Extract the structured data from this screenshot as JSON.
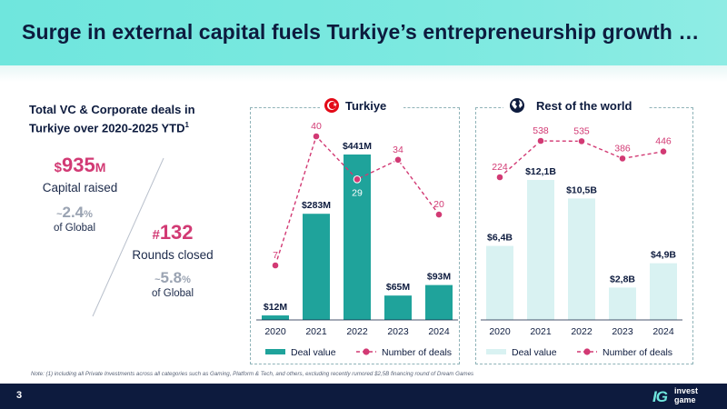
{
  "header": {
    "title": "Surge in external capital fuels Turkiye’s entrepreneurship growth …"
  },
  "summary": {
    "title": "Total VC & Corporate deals in Turkiye over 2020-2025 YTD",
    "title_sup": "1",
    "capital": {
      "prefix": "$",
      "value": "935",
      "unit": "M",
      "caption": "Capital raised",
      "pct_prefix": "~",
      "pct_value": "2.4",
      "pct_sym": "%",
      "pct_caption": "of Global"
    },
    "rounds": {
      "prefix": "#",
      "value": "132",
      "caption": "Rounds closed",
      "pct_prefix": "~",
      "pct_value": "5.8",
      "pct_sym": "%",
      "pct_caption": "of Global"
    }
  },
  "colors": {
    "accent": "#d23a74",
    "dark": "#0d1b3e",
    "teal_bar": "#1fa39b",
    "light_bar": "#d9f2f2",
    "header": "#6fe6dd"
  },
  "icons": {
    "turkiye": "turkey-flag-icon",
    "world": "globe-icon"
  },
  "chart_data": [
    {
      "type": "bar",
      "title": "Turkiye",
      "categories": [
        "2020",
        "2021",
        "2022",
        "2023",
        "2024"
      ],
      "series": [
        {
          "name": "Deal value",
          "kind": "bar",
          "values": [
            12,
            283,
            441,
            65,
            93
          ],
          "labels": [
            "$12M",
            "$283M",
            "$441M",
            "$65M",
            "$93M"
          ],
          "color": "#1fa39b"
        },
        {
          "name": "Number of deals",
          "kind": "line",
          "values": [
            7,
            40,
            29,
            34,
            20
          ],
          "color": "#d23a74"
        }
      ],
      "legend": [
        "Deal value",
        "Number of deals"
      ],
      "legend_position": "bottom"
    },
    {
      "type": "bar",
      "title": "Rest of the world",
      "categories": [
        "2020",
        "2021",
        "2022",
        "2023",
        "2024"
      ],
      "series": [
        {
          "name": "Deal value",
          "kind": "bar",
          "values": [
            6.4,
            12.1,
            10.5,
            2.8,
            4.9
          ],
          "labels": [
            "$6,4B",
            "$12,1B",
            "$10,5B",
            "$2,8B",
            "$4,9B"
          ],
          "color": "#d9f2f2"
        },
        {
          "name": "Number of deals",
          "kind": "line",
          "values": [
            224,
            538,
            535,
            386,
            446
          ],
          "color": "#d23a74"
        }
      ],
      "legend": [
        "Deal value",
        "Number of deals"
      ],
      "legend_position": "bottom"
    }
  ],
  "note": "Note: (1) including all Private Investments across all categories such as Gaming, Platform & Tech, and others, excluding recently rumored $2,5B financing round of Dream Games",
  "footer": {
    "page_number": "3",
    "logo_mark": "IG",
    "logo_line1": "invest",
    "logo_line2": "game"
  }
}
